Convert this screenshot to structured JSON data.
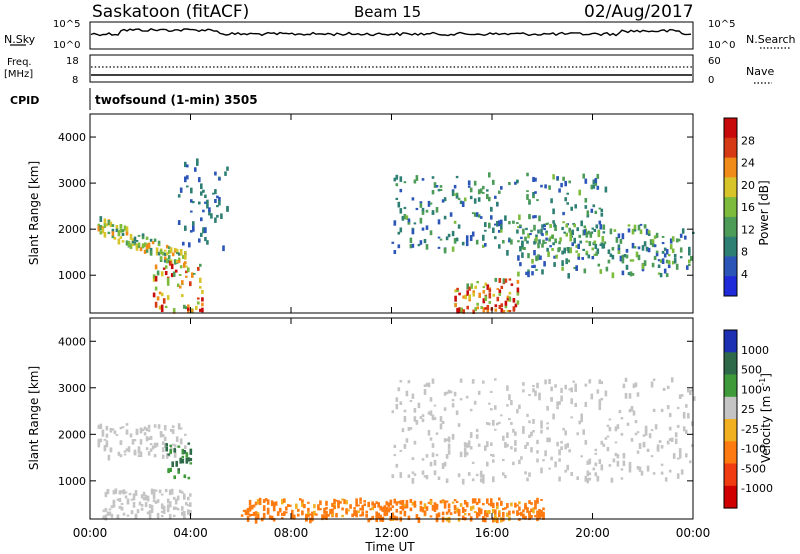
{
  "header": {
    "station": "Saskatoon (fitACF)",
    "beam": "Beam 15",
    "date": "02/Aug/2017"
  },
  "noise_panel": {
    "left_label": "N.Sky",
    "right_label": "N.Search",
    "left_ticks": [
      "10^5",
      "10^0"
    ],
    "right_ticks": [
      "10^5",
      "10^0"
    ]
  },
  "freq_panel": {
    "left_label_line1": "Freq.",
    "left_label_line2": "[MHz]",
    "left_ticks": [
      "18",
      "8"
    ],
    "right_label": "Nave",
    "right_ticks": [
      "60",
      "0"
    ]
  },
  "cpid": {
    "label": "CPID",
    "text": "twofsound (1-min) 3505"
  },
  "power_panel": {
    "ylabel": "Slant Range [km]",
    "cbar_label": "Power [dB]",
    "cbar_ticks": [
      "28",
      "24",
      "20",
      "16",
      "12",
      "8",
      "4"
    ]
  },
  "velocity_panel": {
    "ylabel": "Slant Range [km]",
    "cbar_label": "Velocity [m s",
    "cbar_label_sup": "-1",
    "cbar_label_end": "]",
    "cbar_ticks": [
      "1000",
      "500",
      "100",
      "25",
      "-25",
      "-100",
      "-500",
      "-1000"
    ]
  },
  "xaxis": {
    "label": "Time UT",
    "ticks": [
      "00:00",
      "04:00",
      "08:00",
      "12:00",
      "16:00",
      "20:00",
      "00:00"
    ]
  },
  "colors": {
    "power_scale": [
      "#1f2bd8",
      "#2b56b8",
      "#2e7f73",
      "#4c9c57",
      "#7dbb3c",
      "#d7c42a",
      "#f08a18",
      "#d63a14",
      "#c80a0a"
    ],
    "velocity_scale": [
      "#1d2fb2",
      "#2e6a4a",
      "#3f9b3a",
      "#c4c4c4",
      "#c4c4c4",
      "#f0b020",
      "#ff7a10",
      "#f03c10",
      "#d00000"
    ]
  },
  "chart_data": [
    {
      "type": "heatmap",
      "title": "Power",
      "xlabel": "Time UT",
      "ylabel": "Slant Range [km]",
      "x_range_hours": [
        0,
        24
      ],
      "y_range_km": [
        180,
        4500
      ],
      "y_ticks": [
        1000,
        2000,
        3000,
        4000
      ],
      "colorbar": {
        "label": "Power [dB]",
        "range": [
          0,
          30
        ],
        "ticks": [
          4,
          8,
          12,
          16,
          20,
          24,
          28
        ]
      },
      "features": [
        {
          "t_start": 0.3,
          "t_end": 3.8,
          "range_km": [
            1500,
            2200
          ],
          "level_db": [
            8,
            22
          ],
          "desc": "descending band"
        },
        {
          "t_start": 2.5,
          "t_end": 4.5,
          "range_km": [
            200,
            1300
          ],
          "level_db": [
            12,
            30
          ]
        },
        {
          "t_start": 3.5,
          "t_end": 5.5,
          "range_km": [
            1600,
            3500
          ],
          "level_db": [
            4,
            10
          ]
        },
        {
          "t_start": 12.0,
          "t_end": 20.5,
          "range_km": [
            1500,
            3200
          ],
          "level_db": [
            4,
            14
          ]
        },
        {
          "t_start": 14.5,
          "t_end": 17.0,
          "range_km": [
            200,
            900
          ],
          "level_db": [
            12,
            30
          ]
        },
        {
          "t_start": 17.0,
          "t_end": 24.0,
          "range_km": [
            1000,
            2100
          ],
          "level_db": [
            4,
            16
          ]
        }
      ]
    },
    {
      "type": "heatmap",
      "title": "Velocity",
      "xlabel": "Time UT",
      "ylabel": "Slant Range [km]",
      "x_range_hours": [
        0,
        24
      ],
      "y_range_km": [
        180,
        4500
      ],
      "y_ticks": [
        1000,
        2000,
        3000,
        4000
      ],
      "colorbar": {
        "label": "Velocity [m s-1]",
        "ticks": [
          1000,
          500,
          100,
          25,
          -25,
          -100,
          -500,
          -1000
        ]
      },
      "features": [
        {
          "t_start": 0.3,
          "t_end": 3.8,
          "range_km": [
            1500,
            2200
          ],
          "velocity": [
            -25,
            25
          ],
          "desc": "ground scatter (grey)"
        },
        {
          "t_start": 3.0,
          "t_end": 4.0,
          "range_km": [
            1000,
            1800
          ],
          "velocity": [
            100,
            1000
          ]
        },
        {
          "t_start": 0.5,
          "t_end": 4.0,
          "range_km": [
            200,
            800
          ],
          "velocity": [
            25,
            100
          ]
        },
        {
          "t_start": 6.0,
          "t_end": 18.0,
          "range_km": [
            150,
            600
          ],
          "velocity": [
            -500,
            -25
          ]
        },
        {
          "t_start": 12.0,
          "t_end": 24.0,
          "range_km": [
            1000,
            3200
          ],
          "velocity": [
            -25,
            25
          ],
          "desc": "ground scatter (grey)"
        }
      ]
    }
  ]
}
